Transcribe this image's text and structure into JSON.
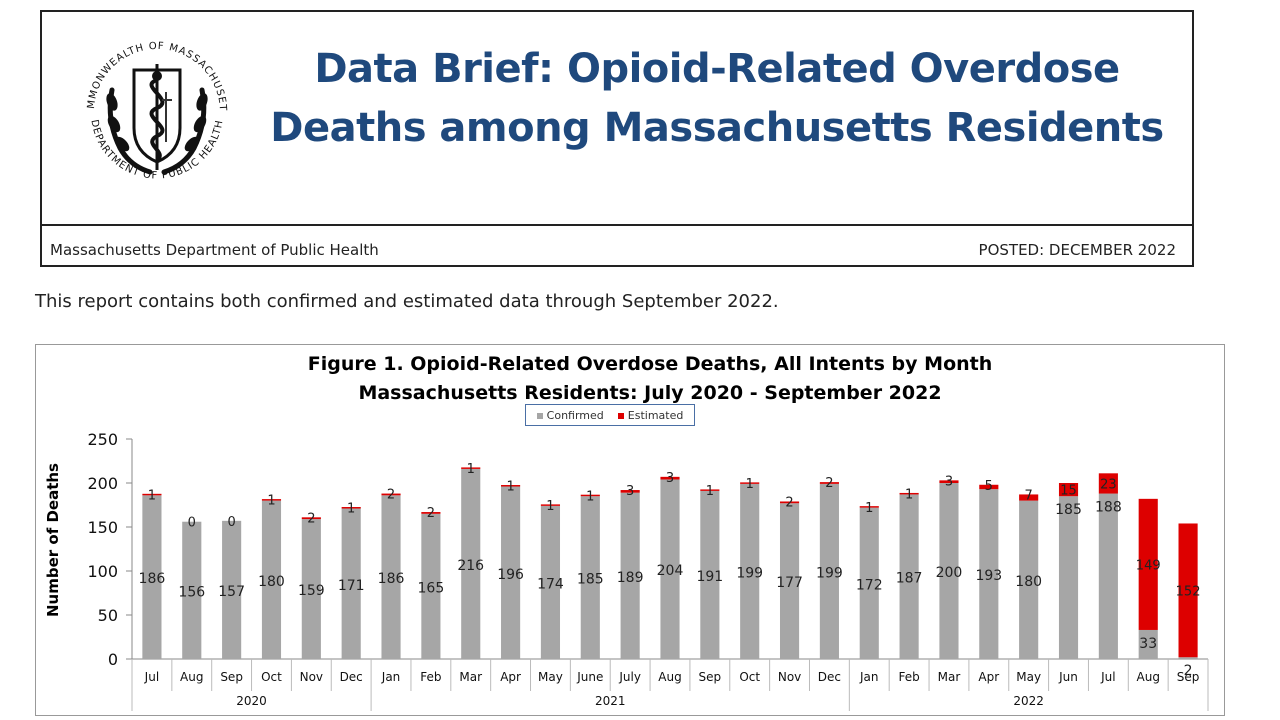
{
  "header": {
    "title_line1": "Data Brief: Opioid-Related Overdose",
    "title_line2": "Deaths among Massachusetts Residents",
    "department": "Massachusetts Department of Public Health",
    "posted": "POSTED:  DECEMBER 2022",
    "seal_text_top": "COMMONWEALTH OF MASSACHUSETTS",
    "seal_text_bottom": "DEPARTMENT OF PUBLIC HEALTH"
  },
  "report_line": "This report contains both confirmed and estimated data through September 2022.",
  "colors": {
    "title": "#1f497d",
    "confirmed": "#a6a6a6",
    "estimated": "#dd0000"
  },
  "chart_data": {
    "type": "bar",
    "stacked": true,
    "title_line1": "Figure 1. Opioid-Related Overdose Deaths, All Intents by Month",
    "title_line2": "Massachusetts Residents: July 2020 - September 2022",
    "ylabel": "Number of Deaths",
    "ylim": [
      0,
      250
    ],
    "yticks": [
      0,
      50,
      100,
      150,
      200,
      250
    ],
    "legend_position": "top-center",
    "categories": [
      "Jul",
      "Aug",
      "Sep",
      "Oct",
      "Nov",
      "Dec",
      "Jan",
      "Feb",
      "Mar",
      "Apr",
      "May",
      "June",
      "July",
      "Aug",
      "Sep",
      "Oct",
      "Nov",
      "Dec",
      "Jan",
      "Feb",
      "Mar",
      "Apr",
      "May",
      "Jun",
      "Jul",
      "Aug",
      "Sep"
    ],
    "years": [
      {
        "label": "2020",
        "count": 6
      },
      {
        "label": "2021",
        "count": 12
      },
      {
        "label": "2022",
        "count": 9
      }
    ],
    "series": [
      {
        "name": "Confirmed",
        "values": [
          186,
          156,
          157,
          180,
          159,
          171,
          186,
          165,
          216,
          196,
          174,
          185,
          189,
          204,
          191,
          199,
          177,
          199,
          172,
          187,
          200,
          193,
          180,
          185,
          188,
          33,
          2
        ]
      },
      {
        "name": "Estimated",
        "values": [
          1,
          0,
          0,
          1,
          2,
          1,
          2,
          2,
          1,
          1,
          1,
          1,
          3,
          3,
          1,
          1,
          2,
          2,
          1,
          1,
          3,
          5,
          7,
          15,
          23,
          149,
          152
        ]
      }
    ]
  }
}
